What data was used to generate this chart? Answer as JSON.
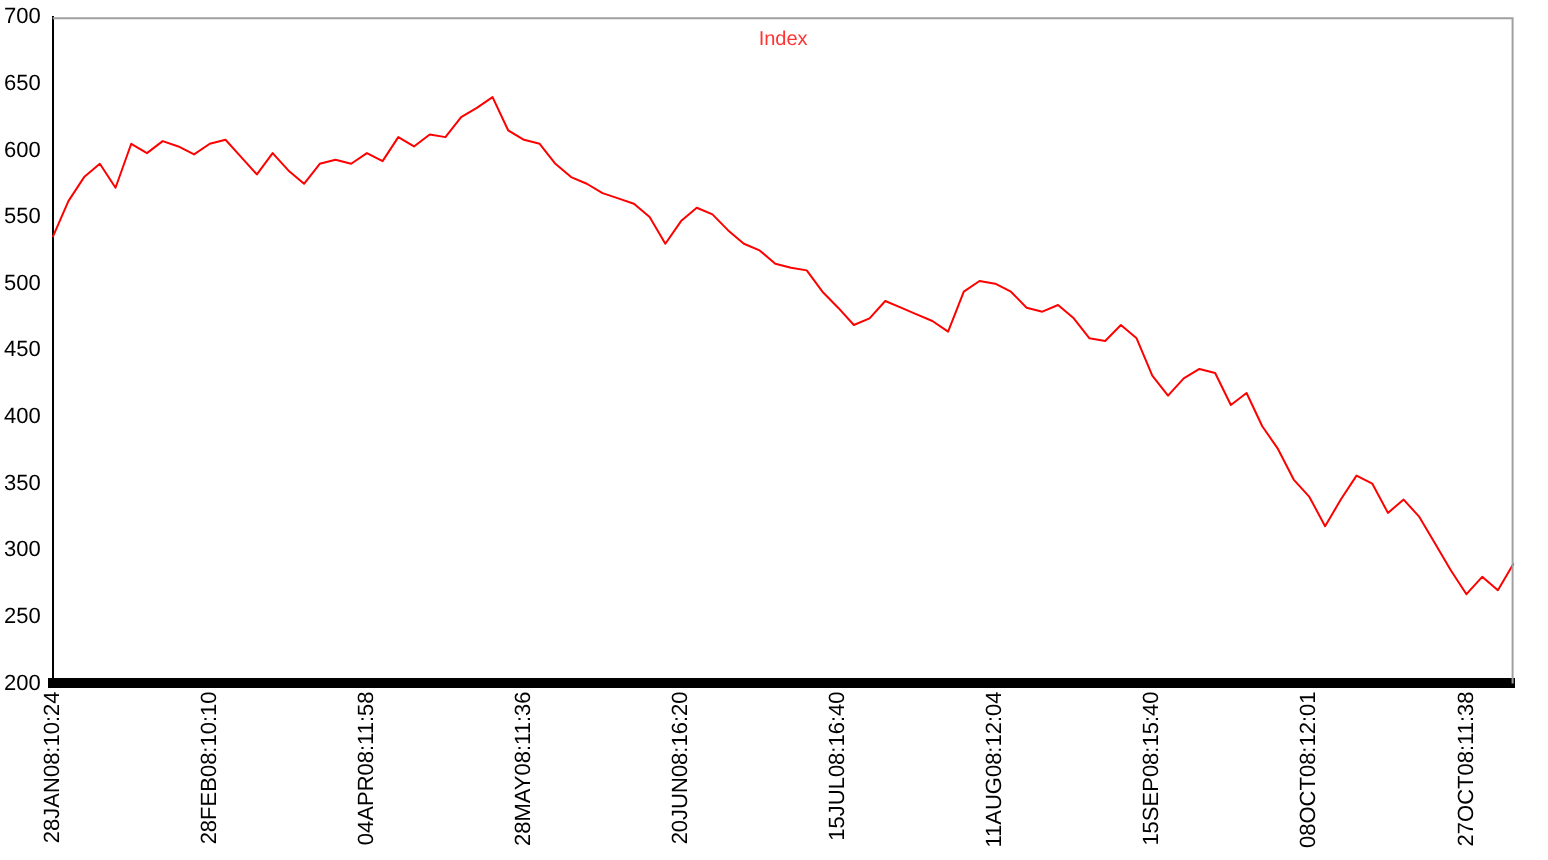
{
  "chart_data": {
    "type": "line",
    "title": "Index",
    "categories": [
      "28JAN08:10:24",
      null,
      null,
      null,
      null,
      null,
      null,
      null,
      null,
      null,
      "28FEB08:10:10",
      null,
      null,
      null,
      null,
      null,
      null,
      null,
      null,
      null,
      "04APR08:11:58",
      null,
      null,
      null,
      null,
      null,
      null,
      null,
      null,
      null,
      "28MAY08:11:36",
      null,
      null,
      null,
      null,
      null,
      null,
      null,
      null,
      null,
      "20JUN08:16:20",
      null,
      null,
      null,
      null,
      null,
      null,
      null,
      null,
      null,
      "15JUL08:16:40",
      null,
      null,
      null,
      null,
      null,
      null,
      null,
      null,
      null,
      "11AUG08:12:04",
      null,
      null,
      null,
      null,
      null,
      null,
      null,
      null,
      null,
      "15SEP08:15:40",
      null,
      null,
      null,
      null,
      null,
      null,
      null,
      null,
      null,
      "08OCT08:12:01",
      null,
      null,
      null,
      null,
      null,
      null,
      null,
      null,
      null,
      "27OCT08:11:38",
      null,
      null,
      null
    ],
    "series": [
      {
        "color": "#ff0000",
        "values": [
          535,
          562,
          580,
          590,
          572,
          605,
          598,
          607,
          603,
          597,
          605,
          608,
          595,
          582,
          598,
          585,
          575,
          590,
          593,
          590,
          598,
          592,
          610,
          603,
          612,
          610,
          625,
          632,
          640,
          615,
          608,
          605,
          590,
          580,
          575,
          568,
          564,
          560,
          550,
          530,
          547,
          557,
          552,
          540,
          530,
          525,
          515,
          512,
          510,
          494,
          482,
          469,
          474,
          487,
          482,
          477,
          472,
          464,
          494,
          502,
          500,
          494,
          482,
          479,
          484,
          474,
          459,
          457,
          469,
          459,
          431,
          416,
          429,
          436,
          433,
          409,
          418,
          393,
          376,
          353,
          340,
          318,
          338,
          356,
          350,
          328,
          338,
          325,
          305,
          285,
          267,
          280,
          270,
          290
        ]
      }
    ],
    "ylim": [
      200,
      700
    ],
    "yticks": [
      200,
      250,
      300,
      350,
      400,
      450,
      500,
      550,
      600,
      650,
      700
    ],
    "grid": false,
    "legend": false,
    "marker": "none",
    "line_style": "solid"
  }
}
